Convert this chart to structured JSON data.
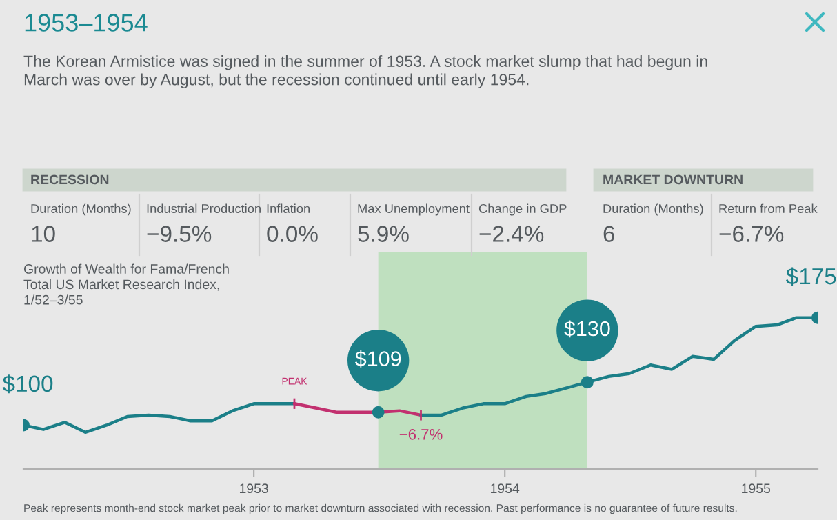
{
  "chart_data": {
    "type": "line",
    "title": "1953–1954",
    "subtitle": "The Korean Armistice was signed in the summer of 1953. A stock market slump that had begun in March was over by August, but the recession continued until early 1954.",
    "series": [
      {
        "color": "#1b7f88",
        "x": [
          "1952-02",
          "1952-03",
          "1952-04",
          "1952-05",
          "1952-06",
          "1952-07",
          "1952-08",
          "1952-09",
          "1952-10",
          "1952-11",
          "1952-12",
          "1953-01",
          "1953-02",
          "1953-03"
        ],
        "values": [
          100,
          97,
          102,
          95,
          100,
          106,
          107,
          106,
          103,
          103,
          110,
          115,
          115,
          115
        ]
      },
      {
        "color": "#c2306f",
        "x": [
          "1953-03",
          "1953-04",
          "1953-05",
          "1953-06",
          "1953-07",
          "1953-08",
          "1953-09"
        ],
        "values": [
          115,
          112,
          109,
          109,
          109,
          110,
          107
        ]
      },
      {
        "color": "#1b7f88",
        "x": [
          "1953-09",
          "1953-10",
          "1953-11",
          "1953-12",
          "1954-01",
          "1954-02",
          "1954-03",
          "1954-04",
          "1954-05",
          "1954-06",
          "1954-07",
          "1954-08",
          "1954-09",
          "1954-10",
          "1954-11",
          "1954-12",
          "1955-01",
          "1955-02",
          "1955-03",
          "1955-04"
        ],
        "values": [
          107,
          107,
          112,
          115,
          115,
          120,
          122,
          126,
          130,
          134,
          136,
          142,
          139,
          148,
          146,
          159,
          169,
          170,
          175,
          175
        ]
      },
      {
        "type": "scatter",
        "color": "#1b7f88",
        "x": [
          "1952-02",
          "1953-07",
          "1954-05",
          "1955-04"
        ],
        "values": [
          100,
          109,
          130,
          175
        ],
        "value_labels": [
          "$100",
          "$109",
          "$130",
          "$175"
        ]
      }
    ],
    "xlim": [
      "1952-02",
      "1955-04"
    ],
    "xticks": [
      {
        "value": "1953-01",
        "label": "1953"
      },
      {
        "value": "1954-01",
        "label": "1954"
      },
      {
        "value": "1955-01",
        "label": "1955"
      }
    ],
    "tick_labels": "x",
    "grid": false,
    "legend": false,
    "bands": [
      {
        "axis": "x",
        "from": "1953-07",
        "to": "1954-05",
        "color": "#bfe0bf"
      }
    ],
    "annotations": [
      "RECESSION",
      "Duration (Months)",
      "10",
      "Industrial Production",
      "−9.5%",
      "Inflation",
      "0.0%",
      "Max Unemployment",
      "5.9%",
      "Change in GDP",
      "−2.4%",
      "MARKET DOWNTURN",
      "Duration (Months)",
      "6",
      "Return from Peak",
      "−6.7%",
      "Growth of Wealth for Fama/French\nTotal US Market Research Index,\n1/52–3/55",
      "Peak represents month-end stock market peak prior to market downturn associated with recession. Past performance is no guarantee of future results.",
      {
        "text": "PEAK",
        "x": "1953-03",
        "y": 115
      },
      {
        "text": "−6.7%",
        "x": "1953-09",
        "y": 107
      }
    ]
  }
}
